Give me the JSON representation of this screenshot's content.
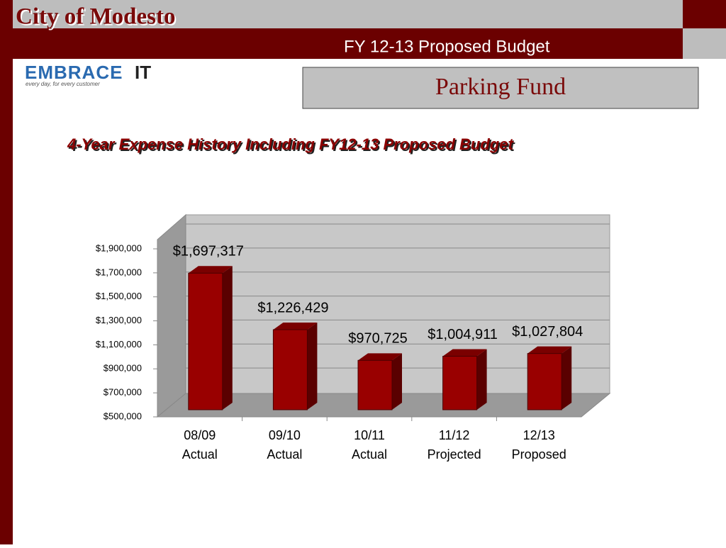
{
  "header": {
    "title": "City of Modesto",
    "subtitle": "FY 12-13 Proposed Budget"
  },
  "logo": {
    "word": "EMBRACE",
    "mark": "IT",
    "tagline": "every day, for every customer"
  },
  "section_title": "Parking Fund",
  "chart_data": {
    "type": "bar",
    "title": "4-Year Expense History Including FY12-13 Proposed Budget",
    "categories": [
      [
        "08/09",
        "Actual"
      ],
      [
        "09/10",
        "Actual"
      ],
      [
        "10/11",
        "Actual"
      ],
      [
        "11/12",
        "Projected"
      ],
      [
        "12/13",
        "Proposed"
      ]
    ],
    "values": [
      1697317,
      1226429,
      970725,
      1004911,
      1027804
    ],
    "value_labels": [
      "$1,697,317",
      "$1,226,429",
      "$970,725",
      "$1,004,911",
      "$1,027,804"
    ],
    "color": "#990000",
    "ylim": [
      500000,
      1900000
    ],
    "yticks": [
      {
        "value": 500000,
        "label": "$500,000"
      },
      {
        "value": 700000,
        "label": "$700,000"
      },
      {
        "value": 900000,
        "label": "$900,000"
      },
      {
        "value": 1100000,
        "label": "$1,100,000"
      },
      {
        "value": 1300000,
        "label": "$1,300,000"
      },
      {
        "value": 1500000,
        "label": "$1,500,000"
      },
      {
        "value": 1700000,
        "label": "$1,700,000"
      },
      {
        "value": 1900000,
        "label": "$1,900,000"
      }
    ],
    "grid": true
  }
}
